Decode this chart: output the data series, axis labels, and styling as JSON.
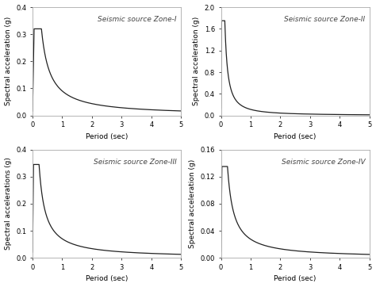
{
  "subplots": [
    {
      "title": "Seismic source Zone-I",
      "ylabel": "Spectral acceleration (g)",
      "xlabel": "Period (sec)",
      "ylim": [
        0,
        0.4
      ],
      "yticks": [
        0,
        0.1,
        0.2,
        0.3,
        0.4
      ],
      "xlim": [
        0,
        5
      ],
      "xticks": [
        0,
        1,
        2,
        3,
        4,
        5
      ],
      "peak": 0.32,
      "peak_period": 0.3,
      "flat_start": 0.05,
      "flat_end": 0.3,
      "decay_power": 1.05,
      "start_val": 0.01
    },
    {
      "title": "Seismic source Zone-II",
      "ylabel": "Spectral acceleration (g)",
      "xlabel": "Period (sec)",
      "ylim": [
        0,
        2
      ],
      "yticks": [
        0,
        0.4,
        0.8,
        1.2,
        1.6,
        2.0
      ],
      "xlim": [
        0,
        5
      ],
      "xticks": [
        0,
        1,
        2,
        3,
        4,
        5
      ],
      "peak": 1.75,
      "peak_period": 0.13,
      "flat_start": 0.02,
      "flat_end": 0.13,
      "decay_power": 1.35,
      "start_val": 0.05
    },
    {
      "title": "Seismic source Zone-III",
      "ylabel": "Spectral accelerations (g)",
      "xlabel": "Period (sec)",
      "ylim": [
        0,
        0.4
      ],
      "yticks": [
        0,
        0.1,
        0.2,
        0.3,
        0.4
      ],
      "xlim": [
        0,
        5
      ],
      "xticks": [
        0,
        1,
        2,
        3,
        4,
        5
      ],
      "peak": 0.345,
      "peak_period": 0.22,
      "flat_start": 0.03,
      "flat_end": 0.22,
      "decay_power": 1.05,
      "start_val": 0.01
    },
    {
      "title": "Seismic source Zone-IV",
      "ylabel": "Spectral acceleration (g)",
      "xlabel": "Period (sec)",
      "ylim": [
        0,
        0.16
      ],
      "yticks": [
        0,
        0.04,
        0.08,
        0.12,
        0.16
      ],
      "xlim": [
        0,
        5
      ],
      "xticks": [
        0,
        1,
        2,
        3,
        4,
        5
      ],
      "peak": 0.135,
      "peak_period": 0.22,
      "flat_start": 0.03,
      "flat_end": 0.22,
      "decay_power": 1.05,
      "start_val": 0.005
    }
  ],
  "line_color": "#222222",
  "background_color": "#ffffff",
  "title_fontsize": 6.5,
  "label_fontsize": 6.5,
  "tick_fontsize": 6
}
